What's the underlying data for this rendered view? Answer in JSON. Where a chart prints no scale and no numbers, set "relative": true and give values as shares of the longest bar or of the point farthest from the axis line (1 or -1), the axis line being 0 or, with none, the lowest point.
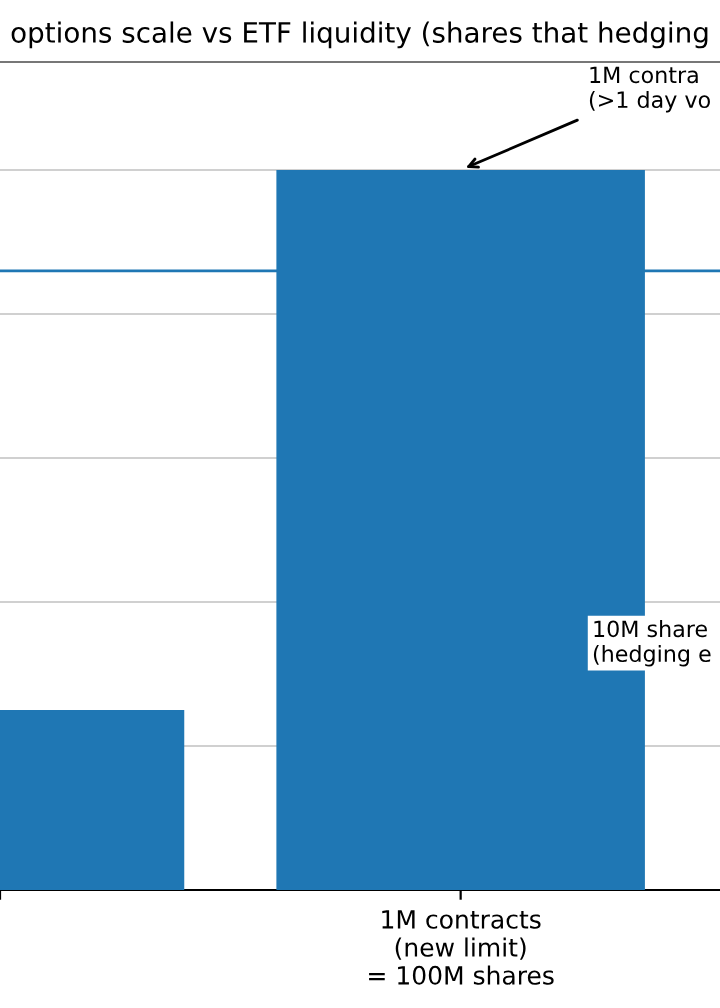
{
  "chart_data": {
    "type": "bar",
    "relative": true,
    "title": "options scale vs ETF liquidity (shares that hedging",
    "categories": [
      null,
      "1M contracts\n(new limit)\n= 100M shares"
    ],
    "values": [
      0.25,
      1
    ],
    "color": "#1f77b4",
    "grid": "y",
    "ref_lines": [
      {
        "axis": "y",
        "value": 0.86,
        "color": "#1f77b4"
      }
    ],
    "annotations": [
      {
        "text": "1M contra\n(>1 day vo",
        "x": "1M contracts\n(new limit)\n= 100M shares",
        "y": 1
      },
      "10M share\n(hedging e"
    ]
  }
}
